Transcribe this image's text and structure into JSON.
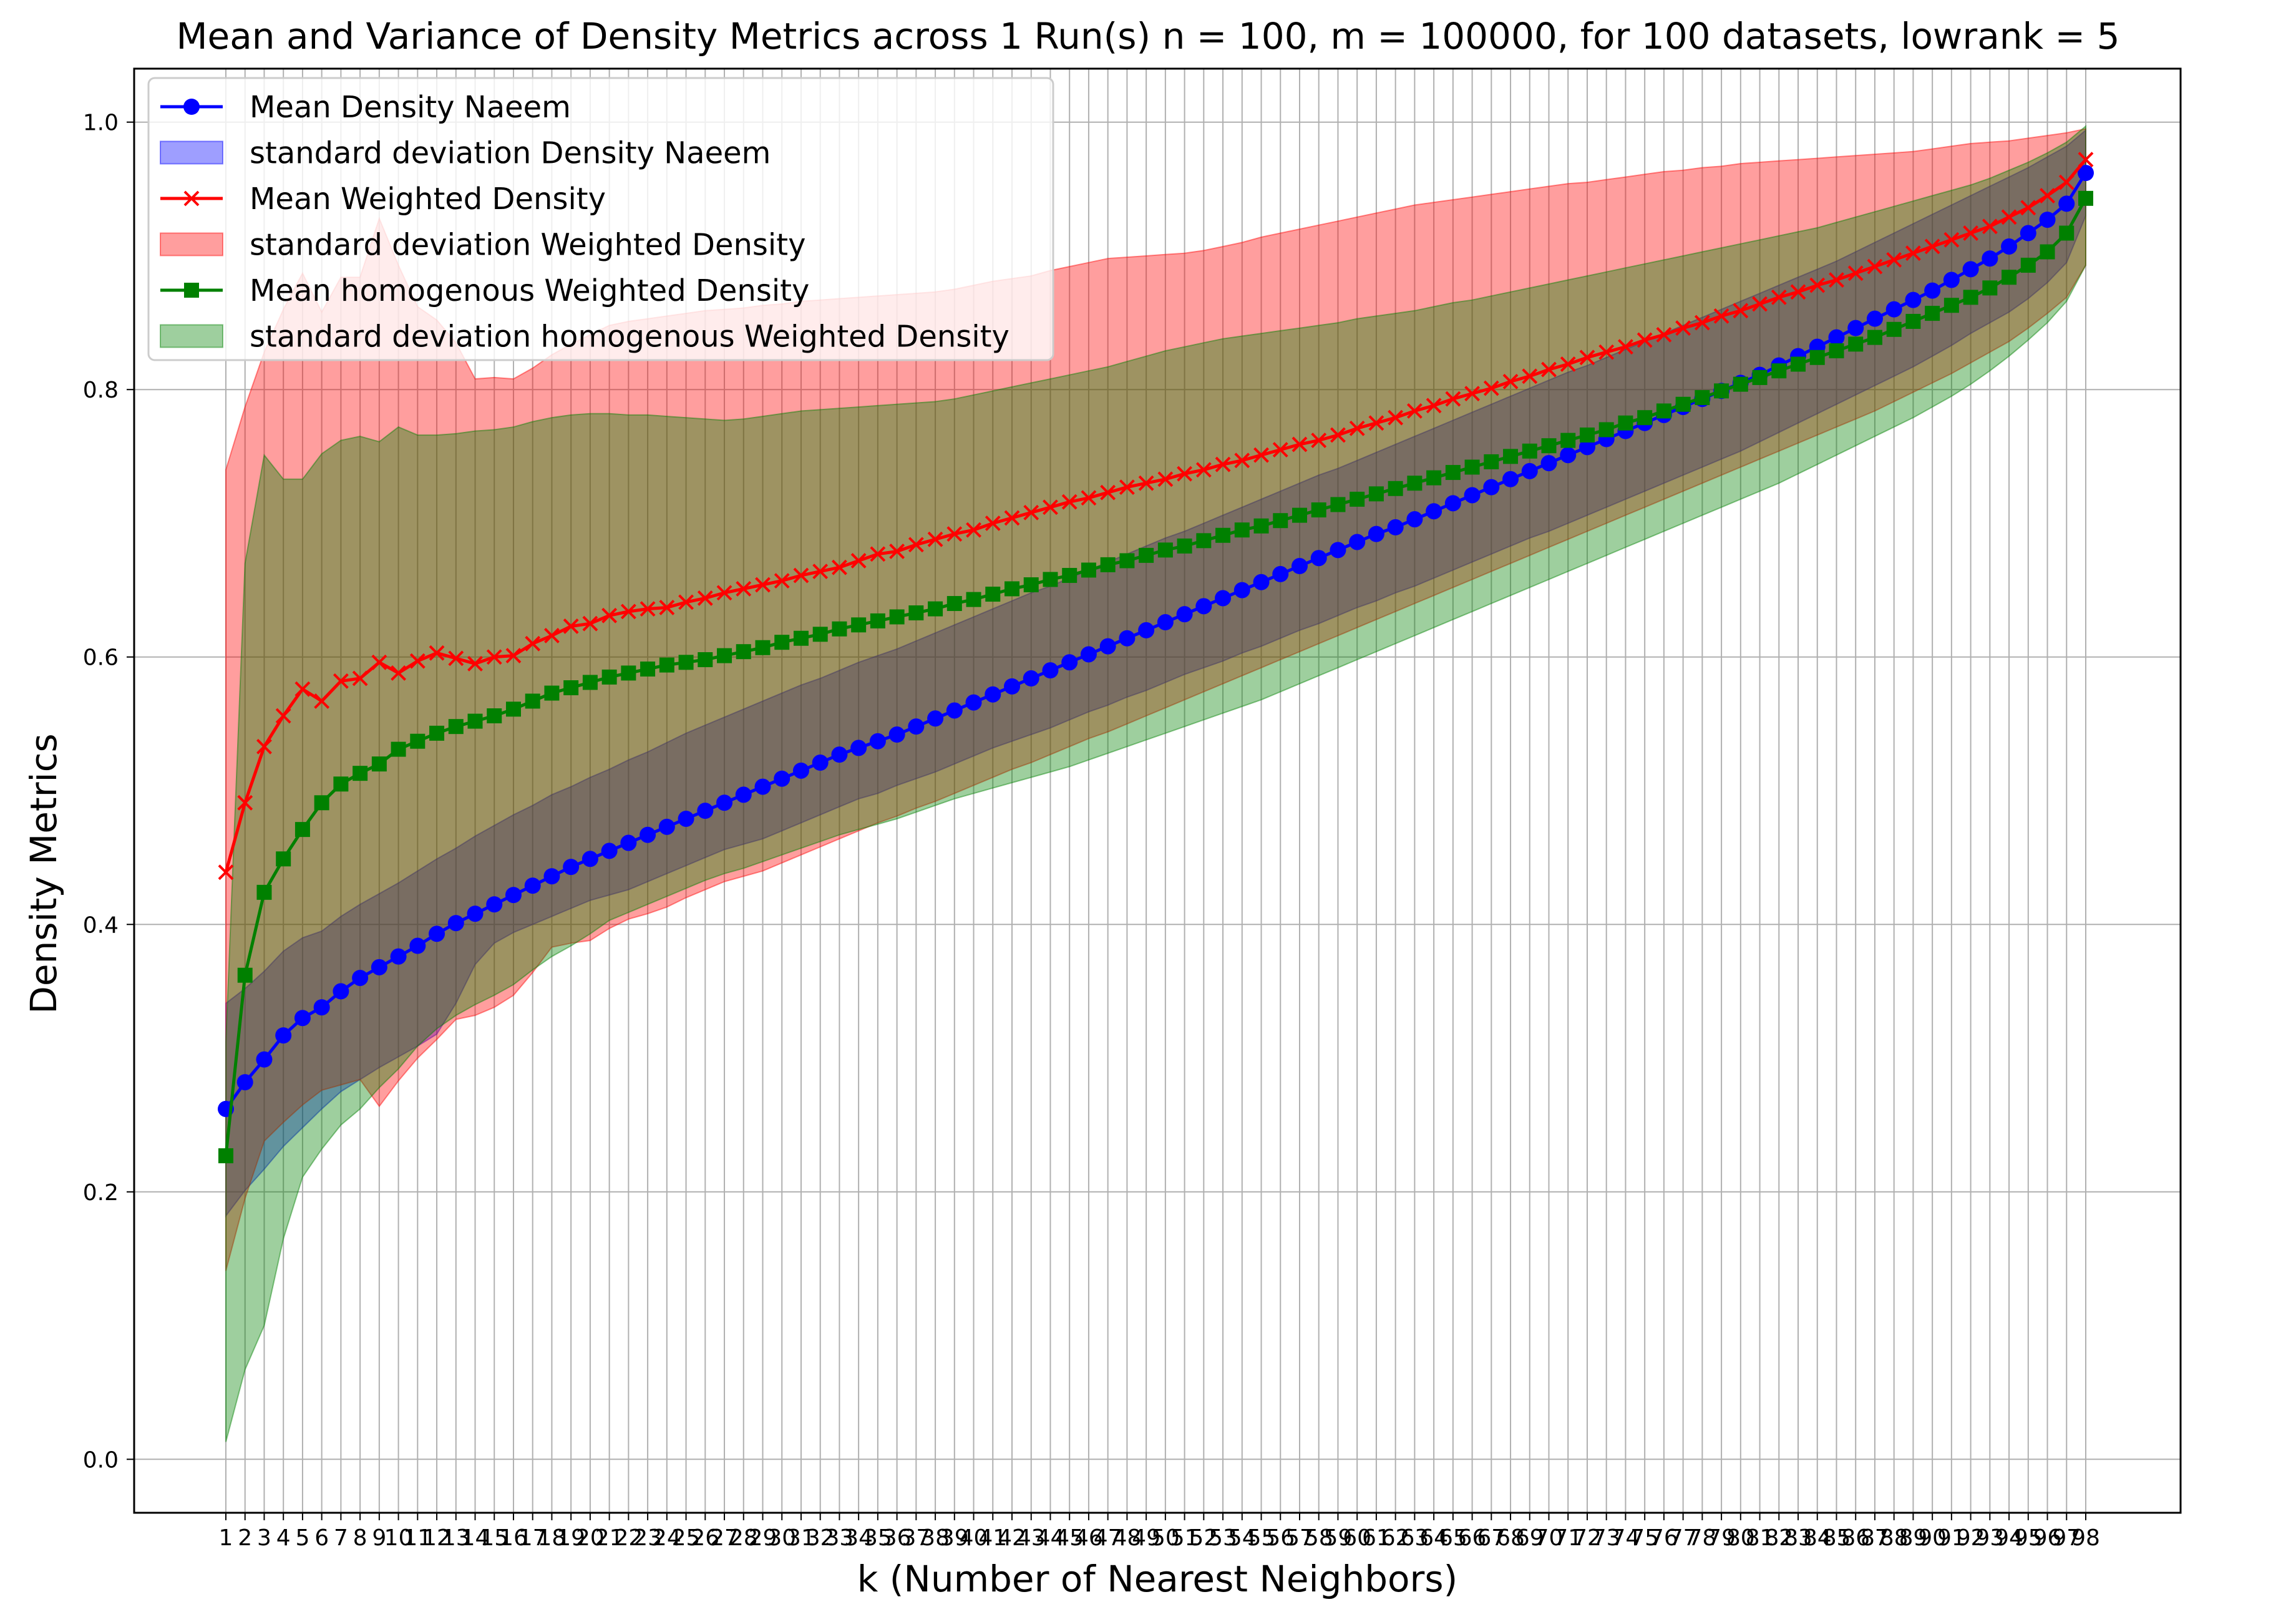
{
  "chart_data": {
    "type": "line",
    "title": "Mean and Variance of Density Metrics across 1 Run(s) n  = 100, m  = 100000, for 100 datasets, lowrank = 5",
    "xlabel": "k (Number of Nearest Neighbors)",
    "ylabel": "Density Metrics",
    "x": [
      1,
      2,
      3,
      4,
      5,
      6,
      7,
      8,
      9,
      10,
      11,
      12,
      13,
      14,
      15,
      16,
      17,
      18,
      19,
      20,
      21,
      22,
      23,
      24,
      25,
      26,
      27,
      28,
      29,
      30,
      31,
      32,
      33,
      34,
      35,
      36,
      37,
      38,
      39,
      40,
      41,
      42,
      43,
      44,
      45,
      46,
      47,
      48,
      49,
      50,
      51,
      52,
      53,
      54,
      55,
      56,
      57,
      58,
      59,
      60,
      61,
      62,
      63,
      64,
      65,
      66,
      67,
      68,
      69,
      70,
      71,
      72,
      73,
      74,
      75,
      76,
      77,
      78,
      79,
      80,
      81,
      82,
      83,
      84,
      85,
      86,
      87,
      88,
      89,
      90,
      91,
      92,
      93,
      94,
      95,
      96,
      97,
      98
    ],
    "ylim": [
      -0.04,
      1.04
    ],
    "yticks": [
      "0.0",
      "0.2",
      "0.4",
      "0.6",
      "0.8",
      "1.0"
    ],
    "grid": true,
    "legend_position": "upper-left",
    "series": [
      {
        "name": "Mean Density Naeem",
        "color": "#0000ff",
        "marker": "circle",
        "values": [
          0.262,
          0.282,
          0.299,
          0.317,
          0.33,
          0.338,
          0.35,
          0.36,
          0.368,
          0.376,
          0.384,
          0.393,
          0.401,
          0.408,
          0.415,
          0.422,
          0.429,
          0.436,
          0.443,
          0.449,
          0.455,
          0.461,
          0.467,
          0.473,
          0.479,
          0.485,
          0.491,
          0.497,
          0.503,
          0.509,
          0.515,
          0.521,
          0.527,
          0.532,
          0.537,
          0.542,
          0.548,
          0.554,
          0.56,
          0.566,
          0.572,
          0.578,
          0.584,
          0.59,
          0.596,
          0.602,
          0.608,
          0.614,
          0.62,
          0.626,
          0.632,
          0.638,
          0.644,
          0.65,
          0.656,
          0.662,
          0.668,
          0.674,
          0.68,
          0.686,
          0.692,
          0.697,
          0.703,
          0.709,
          0.715,
          0.721,
          0.727,
          0.733,
          0.739,
          0.745,
          0.751,
          0.757,
          0.763,
          0.769,
          0.775,
          0.781,
          0.787,
          0.793,
          0.799,
          0.805,
          0.811,
          0.818,
          0.825,
          0.832,
          0.839,
          0.846,
          0.853,
          0.86,
          0.867,
          0.874,
          0.882,
          0.89,
          0.898,
          0.907,
          0.917,
          0.927,
          0.939,
          0.962
        ]
      },
      {
        "name": "Mean Weighted Density",
        "color": "#ff0000",
        "marker": "x",
        "values": [
          0.439,
          0.491,
          0.533,
          0.556,
          0.576,
          0.567,
          0.582,
          0.584,
          0.596,
          0.588,
          0.597,
          0.603,
          0.599,
          0.595,
          0.6,
          0.601,
          0.61,
          0.616,
          0.623,
          0.625,
          0.631,
          0.634,
          0.636,
          0.637,
          0.641,
          0.644,
          0.648,
          0.651,
          0.654,
          0.657,
          0.661,
          0.664,
          0.667,
          0.672,
          0.677,
          0.679,
          0.684,
          0.688,
          0.692,
          0.695,
          0.7,
          0.704,
          0.708,
          0.712,
          0.716,
          0.719,
          0.723,
          0.727,
          0.73,
          0.733,
          0.737,
          0.74,
          0.744,
          0.747,
          0.751,
          0.755,
          0.759,
          0.762,
          0.766,
          0.771,
          0.775,
          0.779,
          0.784,
          0.788,
          0.793,
          0.797,
          0.801,
          0.806,
          0.81,
          0.815,
          0.819,
          0.824,
          0.828,
          0.832,
          0.837,
          0.841,
          0.846,
          0.85,
          0.855,
          0.859,
          0.864,
          0.869,
          0.873,
          0.878,
          0.882,
          0.887,
          0.892,
          0.897,
          0.902,
          0.907,
          0.912,
          0.917,
          0.922,
          0.929,
          0.936,
          0.945,
          0.955,
          0.972
        ]
      },
      {
        "name": "Mean homogenous Weighted Density",
        "color": "#008000",
        "marker": "square",
        "values": [
          0.227,
          0.362,
          0.424,
          0.449,
          0.471,
          0.491,
          0.505,
          0.513,
          0.52,
          0.531,
          0.537,
          0.543,
          0.548,
          0.552,
          0.556,
          0.561,
          0.567,
          0.573,
          0.577,
          0.581,
          0.585,
          0.588,
          0.591,
          0.594,
          0.596,
          0.598,
          0.601,
          0.604,
          0.607,
          0.611,
          0.614,
          0.617,
          0.621,
          0.624,
          0.627,
          0.63,
          0.633,
          0.636,
          0.64,
          0.643,
          0.647,
          0.651,
          0.654,
          0.658,
          0.661,
          0.665,
          0.669,
          0.672,
          0.676,
          0.68,
          0.683,
          0.687,
          0.691,
          0.695,
          0.698,
          0.702,
          0.706,
          0.71,
          0.714,
          0.718,
          0.722,
          0.726,
          0.73,
          0.734,
          0.738,
          0.742,
          0.746,
          0.75,
          0.754,
          0.758,
          0.762,
          0.766,
          0.77,
          0.775,
          0.779,
          0.784,
          0.789,
          0.794,
          0.799,
          0.804,
          0.809,
          0.814,
          0.819,
          0.824,
          0.829,
          0.834,
          0.839,
          0.845,
          0.851,
          0.857,
          0.863,
          0.869,
          0.876,
          0.884,
          0.893,
          0.903,
          0.917,
          0.943
        ]
      }
    ],
    "bands": [
      {
        "name": "standard deviation Density Naeem",
        "color": "#0000ff",
        "lower": [
          0.182,
          0.201,
          0.217,
          0.234,
          0.248,
          0.262,
          0.275,
          0.284,
          0.293,
          0.301,
          0.309,
          0.318,
          0.341,
          0.37,
          0.386,
          0.394,
          0.4,
          0.406,
          0.412,
          0.418,
          0.422,
          0.426,
          0.432,
          0.438,
          0.444,
          0.45,
          0.456,
          0.46,
          0.464,
          0.47,
          0.476,
          0.482,
          0.488,
          0.494,
          0.498,
          0.504,
          0.509,
          0.514,
          0.52,
          0.526,
          0.532,
          0.537,
          0.542,
          0.547,
          0.553,
          0.559,
          0.564,
          0.57,
          0.575,
          0.581,
          0.587,
          0.592,
          0.597,
          0.603,
          0.608,
          0.614,
          0.62,
          0.625,
          0.631,
          0.637,
          0.642,
          0.648,
          0.653,
          0.659,
          0.665,
          0.671,
          0.677,
          0.683,
          0.689,
          0.694,
          0.7,
          0.706,
          0.712,
          0.718,
          0.724,
          0.73,
          0.736,
          0.742,
          0.748,
          0.754,
          0.761,
          0.768,
          0.775,
          0.782,
          0.789,
          0.796,
          0.803,
          0.81,
          0.817,
          0.825,
          0.833,
          0.842,
          0.85,
          0.858,
          0.868,
          0.88,
          0.895,
          0.93
        ],
        "upper": [
          0.341,
          0.352,
          0.365,
          0.38,
          0.39,
          0.395,
          0.406,
          0.415,
          0.423,
          0.431,
          0.44,
          0.449,
          0.457,
          0.466,
          0.474,
          0.482,
          0.489,
          0.497,
          0.503,
          0.51,
          0.516,
          0.523,
          0.529,
          0.536,
          0.543,
          0.549,
          0.555,
          0.561,
          0.567,
          0.573,
          0.579,
          0.584,
          0.59,
          0.596,
          0.601,
          0.606,
          0.612,
          0.618,
          0.624,
          0.63,
          0.636,
          0.642,
          0.648,
          0.653,
          0.659,
          0.665,
          0.671,
          0.677,
          0.683,
          0.689,
          0.694,
          0.7,
          0.706,
          0.712,
          0.718,
          0.724,
          0.73,
          0.736,
          0.741,
          0.747,
          0.753,
          0.759,
          0.765,
          0.771,
          0.777,
          0.783,
          0.789,
          0.795,
          0.801,
          0.807,
          0.813,
          0.818,
          0.824,
          0.83,
          0.836,
          0.842,
          0.848,
          0.854,
          0.86,
          0.866,
          0.872,
          0.878,
          0.884,
          0.89,
          0.896,
          0.903,
          0.91,
          0.917,
          0.924,
          0.931,
          0.938,
          0.945,
          0.952,
          0.959,
          0.966,
          0.974,
          0.982,
          0.994
        ]
      },
      {
        "name": "standard deviation Weighted Density",
        "color": "#ff0000",
        "lower": [
          0.141,
          0.195,
          0.238,
          0.252,
          0.265,
          0.276,
          0.28,
          0.284,
          0.264,
          0.283,
          0.3,
          0.314,
          0.329,
          0.332,
          0.338,
          0.347,
          0.364,
          0.383,
          0.386,
          0.388,
          0.397,
          0.404,
          0.408,
          0.413,
          0.42,
          0.426,
          0.432,
          0.436,
          0.44,
          0.446,
          0.452,
          0.458,
          0.464,
          0.47,
          0.476,
          0.481,
          0.487,
          0.492,
          0.498,
          0.504,
          0.51,
          0.516,
          0.521,
          0.527,
          0.533,
          0.539,
          0.544,
          0.55,
          0.556,
          0.562,
          0.568,
          0.574,
          0.58,
          0.586,
          0.592,
          0.598,
          0.604,
          0.61,
          0.616,
          0.622,
          0.628,
          0.634,
          0.64,
          0.646,
          0.652,
          0.658,
          0.664,
          0.67,
          0.676,
          0.682,
          0.688,
          0.694,
          0.7,
          0.706,
          0.712,
          0.718,
          0.724,
          0.73,
          0.736,
          0.742,
          0.748,
          0.754,
          0.76,
          0.766,
          0.772,
          0.778,
          0.784,
          0.791,
          0.798,
          0.805,
          0.812,
          0.82,
          0.828,
          0.836,
          0.846,
          0.857,
          0.869,
          0.893
        ],
        "upper": [
          0.74,
          0.787,
          0.828,
          0.86,
          0.887,
          0.858,
          0.884,
          0.884,
          0.928,
          0.893,
          0.862,
          0.852,
          0.835,
          0.808,
          0.809,
          0.808,
          0.816,
          0.826,
          0.834,
          0.841,
          0.848,
          0.851,
          0.853,
          0.855,
          0.857,
          0.859,
          0.86,
          0.861,
          0.863,
          0.864,
          0.866,
          0.867,
          0.868,
          0.869,
          0.87,
          0.871,
          0.872,
          0.873,
          0.875,
          0.878,
          0.881,
          0.883,
          0.885,
          0.889,
          0.892,
          0.895,
          0.898,
          0.899,
          0.9,
          0.901,
          0.902,
          0.904,
          0.907,
          0.91,
          0.914,
          0.917,
          0.92,
          0.923,
          0.926,
          0.929,
          0.932,
          0.935,
          0.938,
          0.94,
          0.942,
          0.944,
          0.946,
          0.948,
          0.95,
          0.952,
          0.954,
          0.955,
          0.957,
          0.959,
          0.961,
          0.963,
          0.964,
          0.966,
          0.967,
          0.969,
          0.97,
          0.971,
          0.972,
          0.973,
          0.974,
          0.975,
          0.976,
          0.977,
          0.978,
          0.98,
          0.982,
          0.984,
          0.985,
          0.986,
          0.988,
          0.99,
          0.992,
          0.995
        ]
      },
      {
        "name": "standard deviation homogenous Weighted Density",
        "color": "#008000",
        "lower": [
          0.013,
          0.067,
          0.1,
          0.165,
          0.211,
          0.232,
          0.25,
          0.262,
          0.278,
          0.292,
          0.309,
          0.322,
          0.332,
          0.34,
          0.347,
          0.355,
          0.366,
          0.376,
          0.384,
          0.393,
          0.403,
          0.409,
          0.415,
          0.421,
          0.427,
          0.433,
          0.438,
          0.442,
          0.447,
          0.452,
          0.457,
          0.462,
          0.467,
          0.471,
          0.475,
          0.479,
          0.484,
          0.489,
          0.494,
          0.498,
          0.502,
          0.506,
          0.51,
          0.514,
          0.518,
          0.523,
          0.528,
          0.533,
          0.538,
          0.543,
          0.548,
          0.553,
          0.558,
          0.563,
          0.568,
          0.574,
          0.58,
          0.586,
          0.592,
          0.598,
          0.604,
          0.61,
          0.616,
          0.622,
          0.628,
          0.634,
          0.64,
          0.646,
          0.652,
          0.658,
          0.664,
          0.67,
          0.676,
          0.682,
          0.688,
          0.694,
          0.7,
          0.706,
          0.712,
          0.718,
          0.724,
          0.73,
          0.737,
          0.744,
          0.751,
          0.758,
          0.765,
          0.772,
          0.779,
          0.787,
          0.795,
          0.804,
          0.814,
          0.825,
          0.837,
          0.85,
          0.866,
          0.893
        ],
        "upper": [
          0.312,
          0.67,
          0.751,
          0.733,
          0.733,
          0.752,
          0.762,
          0.765,
          0.761,
          0.772,
          0.766,
          0.766,
          0.767,
          0.769,
          0.77,
          0.772,
          0.776,
          0.779,
          0.781,
          0.782,
          0.782,
          0.781,
          0.781,
          0.78,
          0.779,
          0.778,
          0.777,
          0.778,
          0.78,
          0.782,
          0.784,
          0.785,
          0.786,
          0.787,
          0.788,
          0.789,
          0.79,
          0.791,
          0.793,
          0.796,
          0.799,
          0.802,
          0.805,
          0.808,
          0.811,
          0.814,
          0.817,
          0.821,
          0.825,
          0.829,
          0.832,
          0.835,
          0.838,
          0.84,
          0.842,
          0.844,
          0.846,
          0.848,
          0.85,
          0.853,
          0.855,
          0.857,
          0.859,
          0.862,
          0.865,
          0.867,
          0.87,
          0.873,
          0.876,
          0.879,
          0.882,
          0.885,
          0.888,
          0.891,
          0.894,
          0.897,
          0.9,
          0.903,
          0.906,
          0.909,
          0.912,
          0.915,
          0.918,
          0.921,
          0.925,
          0.929,
          0.933,
          0.937,
          0.941,
          0.945,
          0.949,
          0.953,
          0.958,
          0.964,
          0.97,
          0.977,
          0.985,
          0.997
        ]
      }
    ],
    "legend": [
      {
        "label": "Mean Density Naeem",
        "kind": "line",
        "color": "#0000ff",
        "marker": "circle"
      },
      {
        "label": "standard deviation Density Naeem",
        "kind": "patch",
        "color": "#0000ff"
      },
      {
        "label": "Mean Weighted Density",
        "kind": "line",
        "color": "#ff0000",
        "marker": "x"
      },
      {
        "label": "standard deviation Weighted Density",
        "kind": "patch",
        "color": "#ff0000"
      },
      {
        "label": "Mean homogenous Weighted Density",
        "kind": "line",
        "color": "#008000",
        "marker": "square"
      },
      {
        "label": "standard deviation homogenous Weighted Density",
        "kind": "patch",
        "color": "#008000"
      }
    ]
  }
}
